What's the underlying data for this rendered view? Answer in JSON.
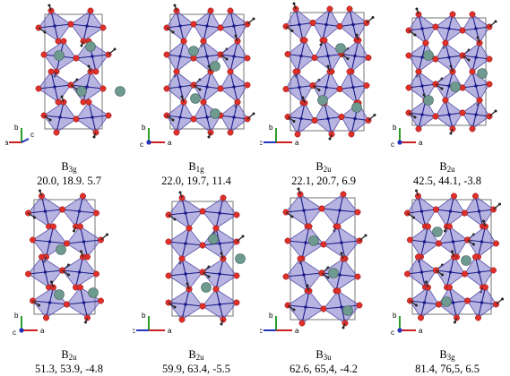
{
  "panels": [
    {
      "symbol": "B",
      "subscript": "3g",
      "frequencies": "20.0, 18.9. 5.7",
      "axes": [
        {
          "label": "a",
          "dir": "left",
          "color": "#cc1f1f"
        },
        {
          "label": "b",
          "dir": "up",
          "color": "#2a9d2a"
        },
        {
          "label": "c",
          "dir": "diag",
          "color": "#2233bb"
        }
      ]
    },
    {
      "symbol": "B",
      "subscript": "1g",
      "frequencies": "22.0, 19.7, 11.4",
      "axes": [
        {
          "label": "a",
          "dir": "right",
          "color": "#cc1f1f"
        },
        {
          "label": "b",
          "dir": "up",
          "color": "#2a9d2a"
        },
        {
          "label": "c",
          "dir": "dot",
          "color": "#2233bb"
        }
      ]
    },
    {
      "symbol": "B",
      "subscript": "2u",
      "frequencies": "22.1, 20.7, 6.9",
      "axes": [
        {
          "label": "a",
          "dir": "right",
          "color": "#cc1f1f"
        },
        {
          "label": "b",
          "dir": "up",
          "color": "#2a9d2a"
        },
        {
          "label": "c",
          "dir": "left",
          "color": "#2233bb"
        }
      ]
    },
    {
      "symbol": "B",
      "subscript": "2u",
      "frequencies": "42.5, 44.1, -3.8",
      "axes": [
        {
          "label": "a",
          "dir": "right",
          "color": "#cc1f1f"
        },
        {
          "label": "b",
          "dir": "up",
          "color": "#2a9d2a"
        },
        {
          "label": "c",
          "dir": "dot",
          "color": "#2233bb"
        }
      ]
    },
    {
      "symbol": "B",
      "subscript": "2u",
      "frequencies": "51.3, 53.9, -4.8",
      "axes": [
        {
          "label": "a",
          "dir": "right",
          "color": "#cc1f1f"
        },
        {
          "label": "b",
          "dir": "up",
          "color": "#2a9d2a"
        },
        {
          "label": "c",
          "dir": "dot",
          "color": "#2233bb"
        }
      ]
    },
    {
      "symbol": "B",
      "subscript": "2u",
      "frequencies": "59.9, 63.4, -5.5",
      "axes": [
        {
          "label": "a",
          "dir": "right",
          "color": "#cc1f1f"
        },
        {
          "label": "b",
          "dir": "up",
          "color": "#2a9d2a"
        },
        {
          "label": "c",
          "dir": "left",
          "color": "#2233bb"
        }
      ]
    },
    {
      "symbol": "B",
      "subscript": "3u",
      "frequencies": "62.6, 65,4, -4.2",
      "axes": [
        {
          "label": "a",
          "dir": "right",
          "color": "#cc1f1f"
        },
        {
          "label": "b",
          "dir": "up",
          "color": "#2a9d2a"
        },
        {
          "label": "c",
          "dir": "left",
          "color": "#2233bb"
        }
      ]
    },
    {
      "symbol": "B",
      "subscript": "3g",
      "frequencies": "81.4, 76,5, 6.5",
      "axes": [
        {
          "label": "a",
          "dir": "right",
          "color": "#cc1f1f"
        },
        {
          "label": "b",
          "dir": "up",
          "color": "#2a9d2a"
        },
        {
          "label": "c",
          "dir": "dot",
          "color": "#2233bb"
        }
      ]
    }
  ],
  "colors": {
    "octahedron_fill": "#7b76c8",
    "octahedron_edge": "#5a52a8",
    "bond": "#1d1d8a",
    "oxygen": "#e0302a",
    "a_site": "#6f9a90",
    "arrow": "#222222",
    "cell_edge": "#555555"
  }
}
